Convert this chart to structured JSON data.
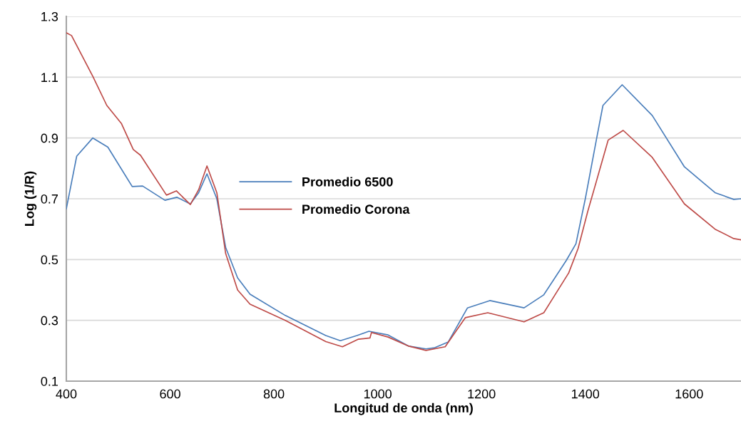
{
  "chart_data": {
    "type": "line",
    "xlabel": "Longitud de onda (nm)",
    "ylabel": "Log (1/R)",
    "xlim": [
      400,
      1700
    ],
    "xticks": [
      400,
      600,
      800,
      1000,
      1200,
      1400,
      1600
    ],
    "ylim": [
      0.1,
      1.3
    ],
    "yticks": [
      0.1,
      0.3,
      0.5,
      0.7,
      0.9,
      1.1,
      1.3
    ],
    "grid": "y",
    "legend": "center",
    "marker": "none",
    "line_style": "solid",
    "series": [
      {
        "name": "Promedio 6500",
        "color": "#4a7ebb",
        "x": [
          400,
          420,
          451,
          480,
          527,
          547,
          590,
          613,
          639,
          655,
          671,
          690,
          707,
          730,
          754,
          822,
          900,
          928,
          960,
          983,
          1020,
          1060,
          1093,
          1110,
          1136,
          1173,
          1216,
          1282,
          1320,
          1363,
          1382,
          1400,
          1422,
          1434,
          1471,
          1529,
          1591,
          1650,
          1686,
          1700
        ],
        "values": [
          0.667,
          0.84,
          0.9,
          0.87,
          0.74,
          0.742,
          0.695,
          0.705,
          0.683,
          0.72,
          0.782,
          0.7,
          0.54,
          0.44,
          0.386,
          0.316,
          0.25,
          0.233,
          0.25,
          0.264,
          0.252,
          0.215,
          0.206,
          0.21,
          0.229,
          0.341,
          0.365,
          0.341,
          0.384,
          0.496,
          0.552,
          0.7,
          0.9,
          1.007,
          1.075,
          0.974,
          0.805,
          0.72,
          0.698,
          0.7
        ]
      },
      {
        "name": "Promedio Corona",
        "color": "#be4b48",
        "x": [
          400,
          410,
          451,
          478,
          506,
          529,
          543,
          593,
          612,
          639,
          655,
          671,
          690,
          707,
          730,
          754,
          822,
          900,
          932,
          963,
          985,
          988,
          1020,
          1060,
          1093,
          1130,
          1169,
          1212,
          1282,
          1320,
          1368,
          1386,
          1405,
          1424,
          1444,
          1473,
          1529,
          1591,
          1650,
          1686,
          1700
        ],
        "values": [
          1.246,
          1.237,
          1.103,
          1.007,
          0.948,
          0.862,
          0.843,
          0.712,
          0.726,
          0.681,
          0.73,
          0.808,
          0.72,
          0.52,
          0.4,
          0.353,
          0.3,
          0.23,
          0.213,
          0.238,
          0.242,
          0.26,
          0.245,
          0.215,
          0.201,
          0.213,
          0.309,
          0.325,
          0.295,
          0.325,
          0.456,
          0.536,
          0.66,
          0.773,
          0.893,
          0.925,
          0.836,
          0.683,
          0.6,
          0.569,
          0.565
        ]
      }
    ]
  }
}
